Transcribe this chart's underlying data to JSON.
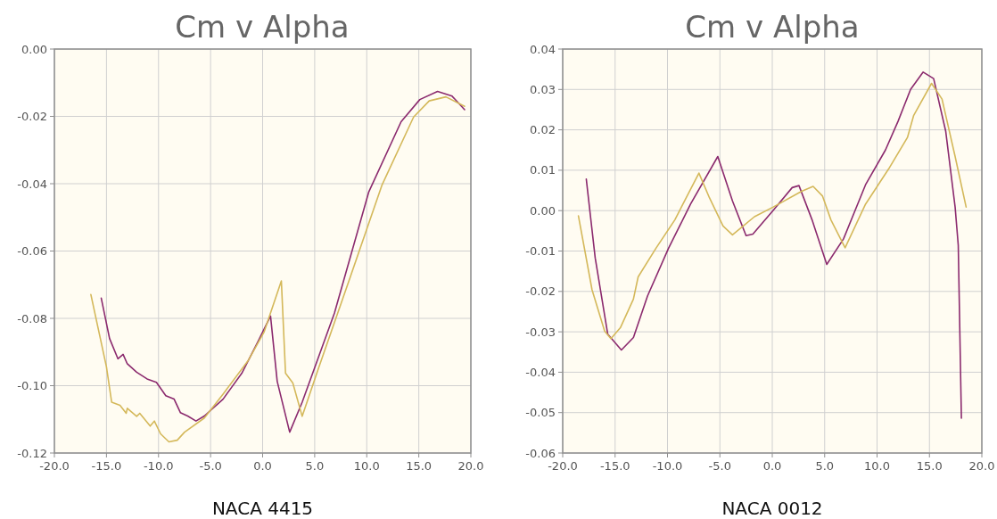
{
  "chart_data": [
    {
      "type": "line",
      "title": "Cm v Alpha",
      "xlabel": "NACA 4415",
      "grid": true,
      "xlim": [
        -20,
        20
      ],
      "ylim": [
        -0.12,
        0
      ],
      "xticks": [
        {
          "value": -20,
          "label": "-20.0"
        },
        {
          "value": -15,
          "label": "-15.0"
        },
        {
          "value": -10,
          "label": "-10.0"
        },
        {
          "value": -5,
          "label": "-5.0"
        },
        {
          "value": 0,
          "label": "0.0"
        },
        {
          "value": 5,
          "label": "5.0"
        },
        {
          "value": 10,
          "label": "10.0"
        },
        {
          "value": 15,
          "label": "15.0"
        },
        {
          "value": 20,
          "label": "20.0"
        }
      ],
      "yticks": [
        {
          "value": -0.12,
          "label": "-0.12"
        },
        {
          "value": -0.1,
          "label": "-0.10"
        },
        {
          "value": -0.08,
          "label": "-0.08"
        },
        {
          "value": -0.06,
          "label": "-0.06"
        },
        {
          "value": -0.04,
          "label": "-0.04"
        },
        {
          "value": -0.02,
          "label": "-0.02"
        },
        {
          "value": 0,
          "label": "0.00"
        }
      ],
      "series": [
        {
          "color": "#8b2a6e",
          "x": [
            -15.5,
            -14.7,
            -13.9,
            -13.4,
            -13.0,
            -12.1,
            -11.1,
            -10.2,
            -9.3,
            -8.5,
            -7.9,
            -7.2,
            -6.4,
            -5.6,
            -3.8,
            -2.0,
            -0.45,
            0.76,
            1.4,
            2.6,
            3.8,
            6.9,
            10.2,
            13.3,
            15.1,
            16.8,
            18.2,
            19.4
          ],
          "values": [
            -0.074,
            -0.086,
            -0.092,
            -0.0907,
            -0.0935,
            -0.096,
            -0.098,
            -0.099,
            -0.103,
            -0.104,
            -0.108,
            -0.109,
            -0.1105,
            -0.109,
            -0.104,
            -0.0963,
            -0.0869,
            -0.0793,
            -0.0987,
            -0.1138,
            -0.1049,
            -0.0784,
            -0.0424,
            -0.0216,
            -0.015,
            -0.0126,
            -0.014,
            -0.018
          ]
        },
        {
          "color": "#d4b85a",
          "x": [
            -16.5,
            -15.0,
            -14.5,
            -13.7,
            -13.1,
            -13.0,
            -12.1,
            -11.8,
            -10.8,
            -10.4,
            -9.8,
            -9.0,
            -8.2,
            -7.5,
            -5.6,
            -3.8,
            -1.4,
            0.15,
            1.8,
            2.2,
            2.9,
            3.8,
            5.3,
            8.4,
            11.45,
            14.5,
            16.0,
            17.6,
            19.4
          ],
          "values": [
            -0.0729,
            -0.0944,
            -0.1049,
            -0.1058,
            -0.1082,
            -0.1067,
            -0.1091,
            -0.1082,
            -0.112,
            -0.1105,
            -0.1143,
            -0.1167,
            -0.1162,
            -0.1138,
            -0.1096,
            -0.1025,
            -0.0926,
            -0.084,
            -0.0689,
            -0.0963,
            -0.0992,
            -0.1091,
            -0.0954,
            -0.0679,
            -0.0405,
            -0.0202,
            -0.0154,
            -0.0142,
            -0.017
          ]
        }
      ]
    },
    {
      "type": "line",
      "title": "Cm v Alpha",
      "xlabel": "NACA 0012",
      "grid": true,
      "xlim": [
        -20,
        20
      ],
      "ylim": [
        -0.06,
        0.04
      ],
      "xticks": [
        {
          "value": -20,
          "label": "-20.0"
        },
        {
          "value": -15,
          "label": "-15.0"
        },
        {
          "value": -10,
          "label": "-10.0"
        },
        {
          "value": -5,
          "label": "-5.0"
        },
        {
          "value": 0,
          "label": "0.0"
        },
        {
          "value": 5,
          "label": "5.0"
        },
        {
          "value": 10,
          "label": "10.0"
        },
        {
          "value": 15,
          "label": "15.0"
        },
        {
          "value": 20,
          "label": "20.0"
        }
      ],
      "yticks": [
        {
          "value": -0.06,
          "label": "-0.06"
        },
        {
          "value": -0.05,
          "label": "-0.05"
        },
        {
          "value": -0.04,
          "label": "-0.04"
        },
        {
          "value": -0.03,
          "label": "-0.03"
        },
        {
          "value": -0.02,
          "label": "-0.02"
        },
        {
          "value": -0.01,
          "label": "-0.01"
        },
        {
          "value": 0,
          "label": "0.00"
        },
        {
          "value": 0.01,
          "label": "0.01"
        },
        {
          "value": 0.02,
          "label": "0.02"
        },
        {
          "value": 0.03,
          "label": "0.03"
        },
        {
          "value": 0.04,
          "label": "0.04"
        }
      ],
      "series": [
        {
          "color": "#8b2a6e",
          "x": [
            -17.75,
            -16.9,
            -15.7,
            -14.4,
            -13.25,
            -11.9,
            -9.9,
            -7.8,
            -5.2,
            -3.8,
            -2.5,
            -1.85,
            0.1,
            1.9,
            2.55,
            3.8,
            5.2,
            6.8,
            8.9,
            10.8,
            12.0,
            13.2,
            14.4,
            15.4,
            16.55,
            17.45,
            17.75,
            18.05
          ],
          "values": [
            0.0078,
            -0.0117,
            -0.0306,
            -0.0345,
            -0.0314,
            -0.0211,
            -0.0093,
            0.0016,
            0.0134,
            0.0024,
            -0.0062,
            -0.0058,
            0.0001,
            0.0057,
            0.0062,
            -0.0023,
            -0.0133,
            -0.007,
            0.0064,
            0.015,
            0.0221,
            0.03,
            0.0343,
            0.0327,
            0.0197,
            0.0009,
            -0.0086,
            -0.0514
          ]
        },
        {
          "color": "#d4b85a",
          "x": [
            -18.5,
            -17.2,
            -16.0,
            -15.4,
            -14.5,
            -13.25,
            -12.8,
            -11.1,
            -9.3,
            -7.0,
            -6.0,
            -4.7,
            -3.8,
            -1.7,
            0.1,
            2.8,
            3.9,
            4.8,
            5.6,
            6.95,
            8.9,
            11.1,
            12.9,
            13.5,
            15.2,
            16.2,
            17.45,
            18.5
          ],
          "values": [
            -0.0013,
            -0.0196,
            -0.0298,
            -0.0317,
            -0.029,
            -0.0219,
            -0.0164,
            -0.0093,
            -0.0023,
            0.0093,
            0.0032,
            -0.0038,
            -0.006,
            -0.0015,
            0.0009,
            0.0048,
            0.006,
            0.0036,
            -0.0023,
            -0.0092,
            0.0016,
            0.0103,
            0.0181,
            0.0236,
            0.0315,
            0.0276,
            0.0134,
            0.0009
          ]
        }
      ]
    }
  ]
}
